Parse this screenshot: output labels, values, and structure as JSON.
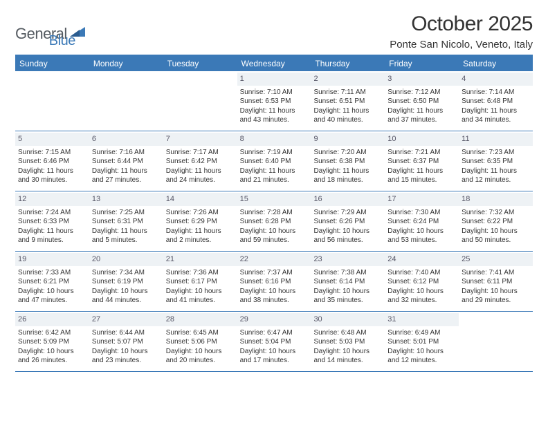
{
  "logo": {
    "part1": "General",
    "part2": "Blue"
  },
  "title": "October 2025",
  "location": "Ponte San Nicolo, Veneto, Italy",
  "colors": {
    "accent": "#3b79b7",
    "logo_gray": "#555b61",
    "text": "#333333",
    "daynum_bg": "#eef2f5",
    "white": "#ffffff"
  },
  "daysOfWeek": [
    "Sunday",
    "Monday",
    "Tuesday",
    "Wednesday",
    "Thursday",
    "Friday",
    "Saturday"
  ],
  "startOffset": 3,
  "days": [
    {
      "n": 1,
      "sunrise": "7:10 AM",
      "sunset": "6:53 PM",
      "dlh": 11,
      "dlm": 43
    },
    {
      "n": 2,
      "sunrise": "7:11 AM",
      "sunset": "6:51 PM",
      "dlh": 11,
      "dlm": 40
    },
    {
      "n": 3,
      "sunrise": "7:12 AM",
      "sunset": "6:50 PM",
      "dlh": 11,
      "dlm": 37
    },
    {
      "n": 4,
      "sunrise": "7:14 AM",
      "sunset": "6:48 PM",
      "dlh": 11,
      "dlm": 34
    },
    {
      "n": 5,
      "sunrise": "7:15 AM",
      "sunset": "6:46 PM",
      "dlh": 11,
      "dlm": 30
    },
    {
      "n": 6,
      "sunrise": "7:16 AM",
      "sunset": "6:44 PM",
      "dlh": 11,
      "dlm": 27
    },
    {
      "n": 7,
      "sunrise": "7:17 AM",
      "sunset": "6:42 PM",
      "dlh": 11,
      "dlm": 24
    },
    {
      "n": 8,
      "sunrise": "7:19 AM",
      "sunset": "6:40 PM",
      "dlh": 11,
      "dlm": 21
    },
    {
      "n": 9,
      "sunrise": "7:20 AM",
      "sunset": "6:38 PM",
      "dlh": 11,
      "dlm": 18
    },
    {
      "n": 10,
      "sunrise": "7:21 AM",
      "sunset": "6:37 PM",
      "dlh": 11,
      "dlm": 15
    },
    {
      "n": 11,
      "sunrise": "7:23 AM",
      "sunset": "6:35 PM",
      "dlh": 11,
      "dlm": 12
    },
    {
      "n": 12,
      "sunrise": "7:24 AM",
      "sunset": "6:33 PM",
      "dlh": 11,
      "dlm": 9
    },
    {
      "n": 13,
      "sunrise": "7:25 AM",
      "sunset": "6:31 PM",
      "dlh": 11,
      "dlm": 5
    },
    {
      "n": 14,
      "sunrise": "7:26 AM",
      "sunset": "6:29 PM",
      "dlh": 11,
      "dlm": 2
    },
    {
      "n": 15,
      "sunrise": "7:28 AM",
      "sunset": "6:28 PM",
      "dlh": 10,
      "dlm": 59
    },
    {
      "n": 16,
      "sunrise": "7:29 AM",
      "sunset": "6:26 PM",
      "dlh": 10,
      "dlm": 56
    },
    {
      "n": 17,
      "sunrise": "7:30 AM",
      "sunset": "6:24 PM",
      "dlh": 10,
      "dlm": 53
    },
    {
      "n": 18,
      "sunrise": "7:32 AM",
      "sunset": "6:22 PM",
      "dlh": 10,
      "dlm": 50
    },
    {
      "n": 19,
      "sunrise": "7:33 AM",
      "sunset": "6:21 PM",
      "dlh": 10,
      "dlm": 47
    },
    {
      "n": 20,
      "sunrise": "7:34 AM",
      "sunset": "6:19 PM",
      "dlh": 10,
      "dlm": 44
    },
    {
      "n": 21,
      "sunrise": "7:36 AM",
      "sunset": "6:17 PM",
      "dlh": 10,
      "dlm": 41
    },
    {
      "n": 22,
      "sunrise": "7:37 AM",
      "sunset": "6:16 PM",
      "dlh": 10,
      "dlm": 38
    },
    {
      "n": 23,
      "sunrise": "7:38 AM",
      "sunset": "6:14 PM",
      "dlh": 10,
      "dlm": 35
    },
    {
      "n": 24,
      "sunrise": "7:40 AM",
      "sunset": "6:12 PM",
      "dlh": 10,
      "dlm": 32
    },
    {
      "n": 25,
      "sunrise": "7:41 AM",
      "sunset": "6:11 PM",
      "dlh": 10,
      "dlm": 29
    },
    {
      "n": 26,
      "sunrise": "6:42 AM",
      "sunset": "5:09 PM",
      "dlh": 10,
      "dlm": 26
    },
    {
      "n": 27,
      "sunrise": "6:44 AM",
      "sunset": "5:07 PM",
      "dlh": 10,
      "dlm": 23
    },
    {
      "n": 28,
      "sunrise": "6:45 AM",
      "sunset": "5:06 PM",
      "dlh": 10,
      "dlm": 20
    },
    {
      "n": 29,
      "sunrise": "6:47 AM",
      "sunset": "5:04 PM",
      "dlh": 10,
      "dlm": 17
    },
    {
      "n": 30,
      "sunrise": "6:48 AM",
      "sunset": "5:03 PM",
      "dlh": 10,
      "dlm": 14
    },
    {
      "n": 31,
      "sunrise": "6:49 AM",
      "sunset": "5:01 PM",
      "dlh": 10,
      "dlm": 12
    }
  ]
}
